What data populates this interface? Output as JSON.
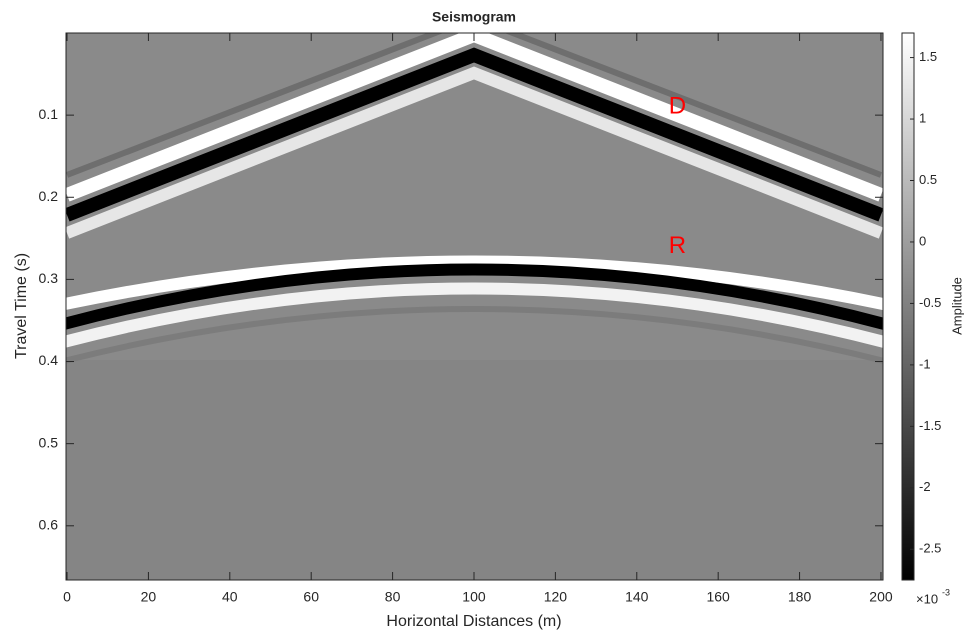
{
  "chart_data": {
    "type": "heatmap",
    "title": "Seismogram",
    "xlabel": "Horizontal Distances (m)",
    "ylabel": "Travel Time (s)",
    "xlim": [
      -0.25,
      200.5
    ],
    "ylim": [
      0,
      0.666
    ],
    "y_reversed": true,
    "xticks": [
      0,
      20,
      40,
      60,
      80,
      100,
      120,
      140,
      160,
      180,
      200
    ],
    "yticks": [
      0.1,
      0.2,
      0.3,
      0.4,
      0.5,
      0.6
    ],
    "annotations": [
      {
        "text": "D",
        "x": 150,
        "y": 0.1,
        "color": "#ff0000"
      },
      {
        "text": "R",
        "x": 150,
        "y": 0.27,
        "color": "#ff0000"
      }
    ],
    "colorbar": {
      "label": "Amplitude",
      "clim": [
        -2.75,
        1.7
      ],
      "ticks": [
        1.5,
        1,
        0.5,
        0,
        -0.5,
        -1,
        -1.5,
        -2,
        -2.5
      ],
      "multiplier": "×10",
      "multiplier_power": "-3"
    }
  }
}
